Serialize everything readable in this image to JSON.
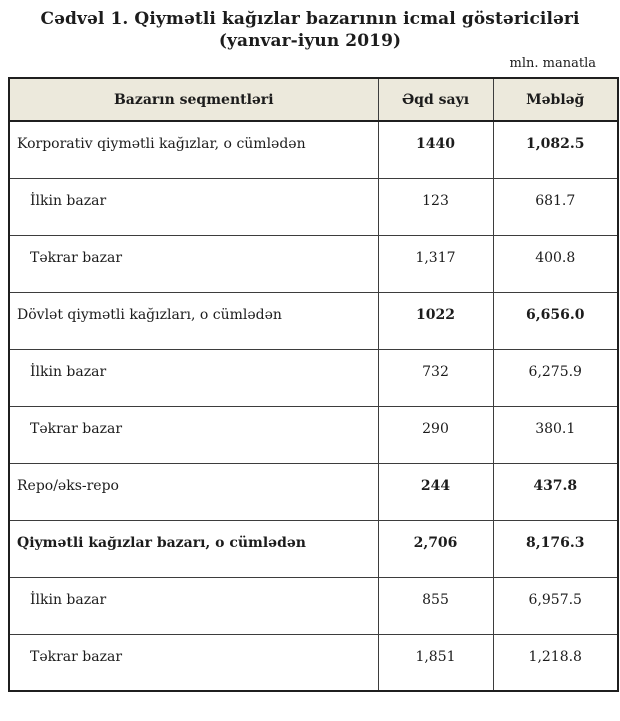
{
  "page": {
    "title": "Cədvəl 1. Qiymətli kağızlar bazarının icmal göstəriciləri (yanvar-iyun 2019)",
    "unit_note": "mln. manatla"
  },
  "table": {
    "header_bg": "#ece9dc",
    "border_color": "#3d3d3d",
    "columns": {
      "segments": "Bazarın seqmentləri",
      "deals": "Əqd sayı",
      "amount": "Məbləğ"
    },
    "rows": [
      {
        "label": "Korporativ qiymətli kağızlar, o cümlədən",
        "deals": "1440",
        "amount": "1,082.5",
        "label_bold": false,
        "values_bold": true,
        "indent": false
      },
      {
        "label": "İlkin bazar",
        "deals": "123",
        "amount": "681.7",
        "label_bold": false,
        "values_bold": false,
        "indent": true
      },
      {
        "label": "Təkrar bazar",
        "deals": "1,317",
        "amount": "400.8",
        "label_bold": false,
        "values_bold": false,
        "indent": true
      },
      {
        "label": "Dövlət qiymətli kağızları, o cümlədən",
        "deals": "1022",
        "amount": "6,656.0",
        "label_bold": false,
        "values_bold": true,
        "indent": false
      },
      {
        "label": "İlkin bazar",
        "deals": "732",
        "amount": "6,275.9",
        "label_bold": false,
        "values_bold": false,
        "indent": true
      },
      {
        "label": "Təkrar bazar",
        "deals": "290",
        "amount": "380.1",
        "label_bold": false,
        "values_bold": false,
        "indent": true
      },
      {
        "label": "Repo/əks-repo",
        "deals": "244",
        "amount": "437.8",
        "label_bold": false,
        "values_bold": true,
        "indent": false
      },
      {
        "label": "Qiymətli kağızlar bazarı, o cümlədən",
        "deals": "2,706",
        "amount": "8,176.3",
        "label_bold": true,
        "values_bold": true,
        "indent": false
      },
      {
        "label": "İlkin bazar",
        "deals": "855",
        "amount": "6,957.5",
        "label_bold": false,
        "values_bold": false,
        "indent": true
      },
      {
        "label": "Təkrar bazar",
        "deals": "1,851",
        "amount": "1,218.8",
        "label_bold": false,
        "values_bold": false,
        "indent": true
      }
    ]
  }
}
